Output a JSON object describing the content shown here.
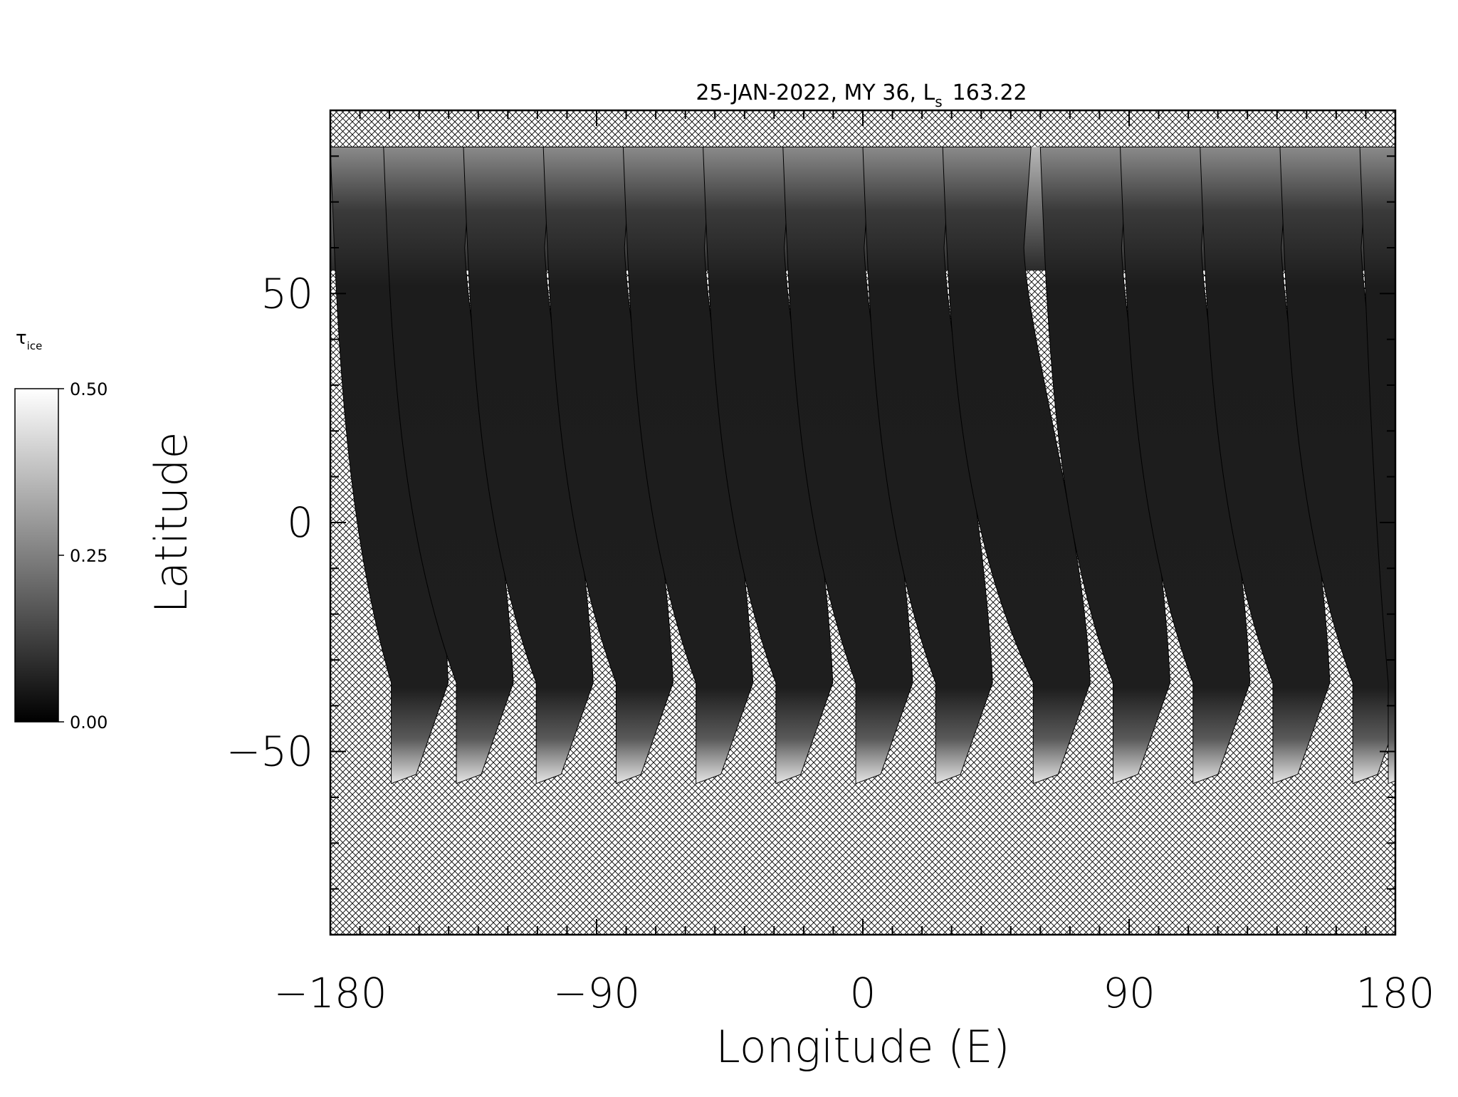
{
  "chart_data": {
    "type": "heatmap",
    "title_main": "25-JAN-2022, MY 36,  L",
    "title_sub": "s",
    "title_value": "163.22",
    "xlabel": "Longitude (E)",
    "ylabel": "Latitude",
    "xlim": [
      -180,
      180
    ],
    "ylim": [
      -90,
      90
    ],
    "x_tick_labels": [
      {
        "value": -180,
        "label": "−180"
      },
      {
        "value": -90,
        "label": "−90"
      },
      {
        "value": 0,
        "label": "0"
      },
      {
        "value": 90,
        "label": "90"
      },
      {
        "value": 180,
        "label": "180"
      }
    ],
    "y_tick_labels": [
      {
        "value": 50,
        "label": "50"
      },
      {
        "value": 0,
        "label": "0"
      },
      {
        "value": -50,
        "label": "−50"
      }
    ],
    "x_minor_step": 10,
    "y_minor_step": 10,
    "colorbar": {
      "label_symbol": "τ",
      "label_sub": "ice",
      "range": [
        0.0,
        0.5
      ],
      "tick_labels": [
        "0.50",
        "0.25",
        "0.00"
      ],
      "tick_values": [
        0.5,
        0.25,
        0.0
      ]
    },
    "no_data_pattern": "crosshatch",
    "orbit_swaths": [
      {
        "lon_north": -180,
        "lon_south": -157,
        "lat_min": -57
      },
      {
        "lon_north": -162,
        "lon_south": -135,
        "lat_min": -57
      },
      {
        "lon_north": -135,
        "lon_south": -108,
        "lat_min": -57
      },
      {
        "lon_north": -108,
        "lon_south": -81,
        "lat_min": -57
      },
      {
        "lon_north": -81,
        "lon_south": -54,
        "lat_min": -57
      },
      {
        "lon_north": -54,
        "lon_south": -27,
        "lat_min": -57
      },
      {
        "lon_north": -27,
        "lon_south": 0,
        "lat_min": -57
      },
      {
        "lon_north": 0,
        "lon_south": 27,
        "lat_min": -57
      },
      {
        "lon_north": 27,
        "lon_south": 60,
        "lat_min": -57
      },
      {
        "lon_north": 60,
        "lon_south": 87,
        "lat_min": -57
      },
      {
        "lon_north": 87,
        "lon_south": 114,
        "lat_min": -57
      },
      {
        "lon_north": 114,
        "lon_south": 141,
        "lat_min": -57
      },
      {
        "lon_north": 141,
        "lon_south": 168,
        "lat_min": -57
      },
      {
        "lon_north": 168,
        "lon_south": 180,
        "lat_min": -57
      }
    ],
    "north_coverage_lat_max": 82,
    "typical_values": {
      "midlatitude_swath": 0.04,
      "north_polar_hood": 0.35,
      "south_edge": 0.45
    },
    "colors": {
      "background": "#ffffff",
      "hatch": "#000000",
      "low": "#000000",
      "high": "#ffffff"
    }
  }
}
